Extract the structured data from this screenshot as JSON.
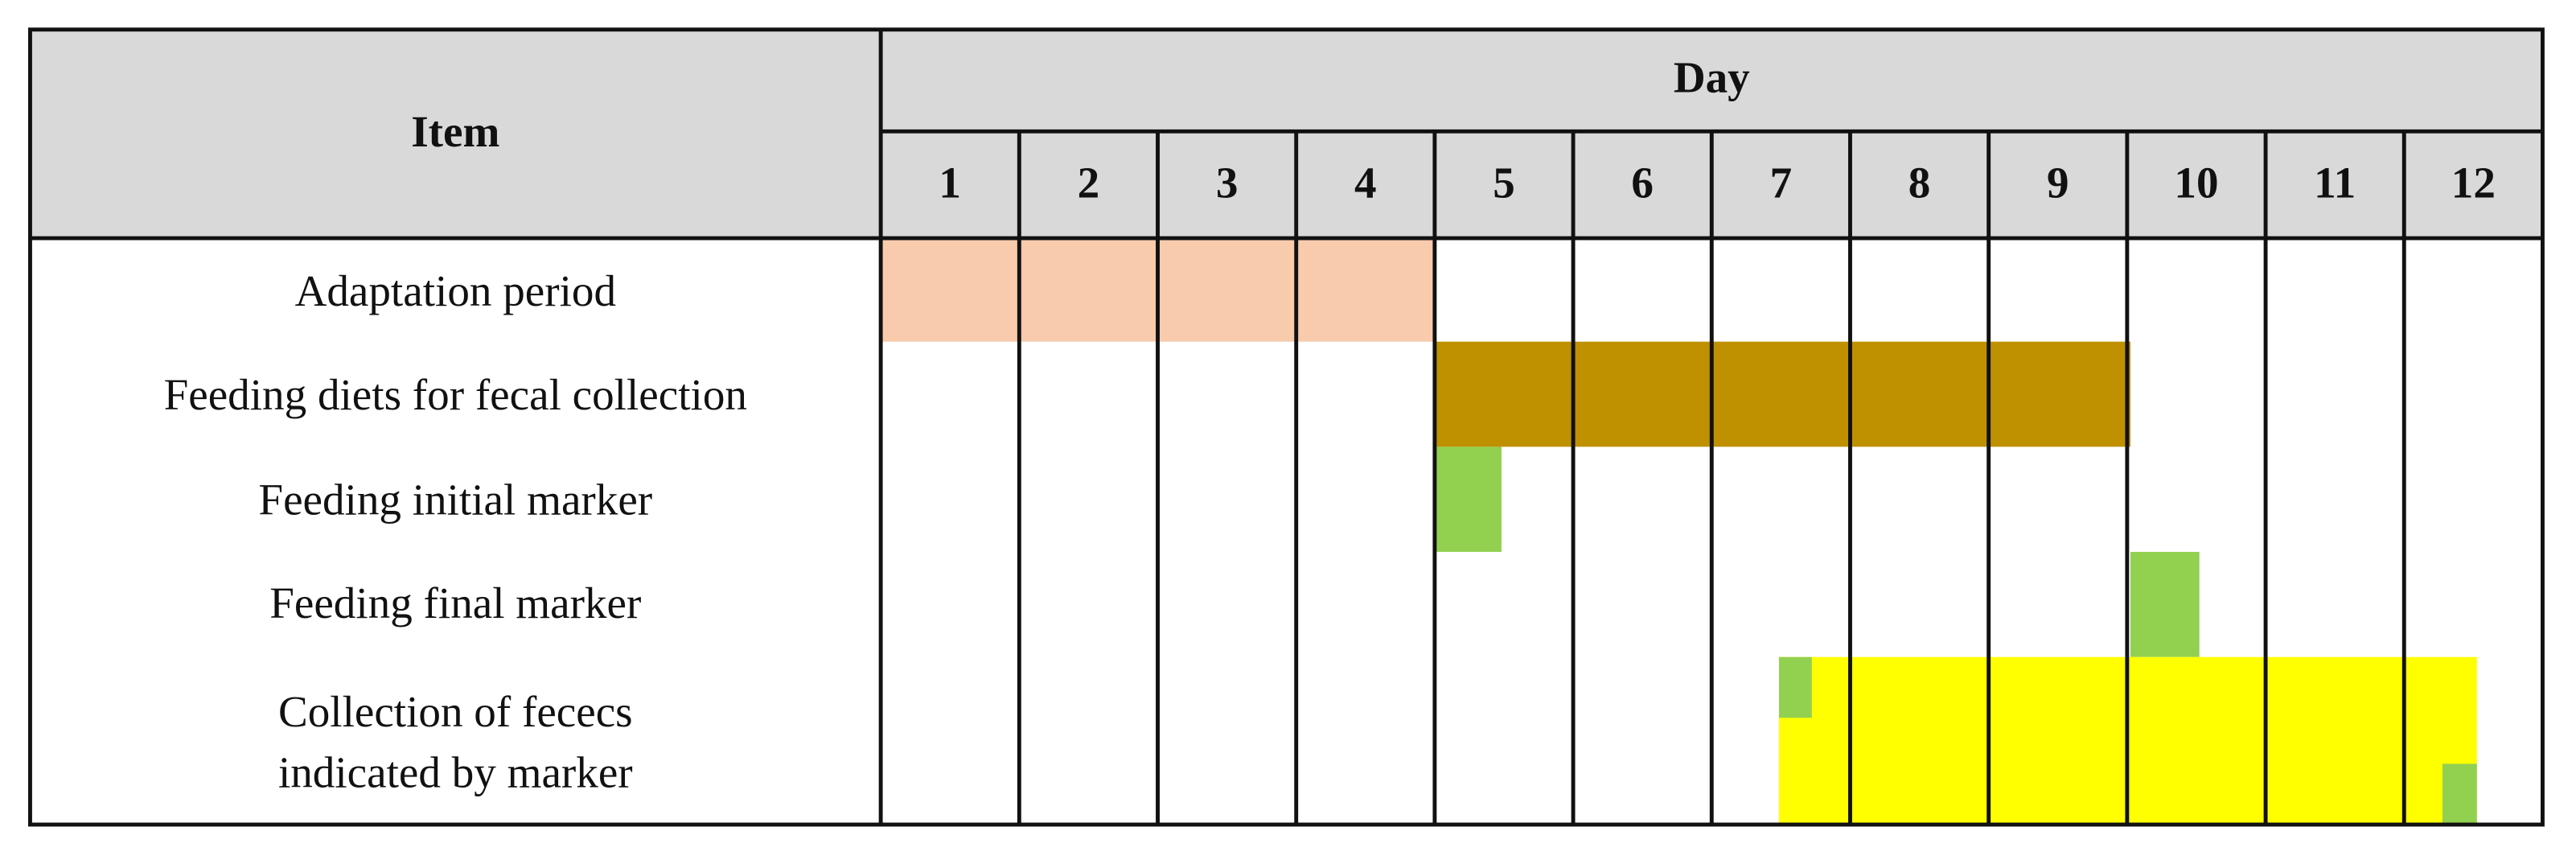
{
  "header": {
    "item": "Item",
    "day": "Day",
    "days": [
      "1",
      "2",
      "3",
      "4",
      "5",
      "6",
      "7",
      "8",
      "9",
      "10",
      "11",
      "12"
    ]
  },
  "rows": [
    [
      "Adaptation period"
    ],
    [
      "Feeding diets for fecal collection"
    ],
    [
      "Feeding initial marker"
    ],
    [
      "Feeding final marker"
    ],
    [
      "Collection of fececs",
      "indicated by marker"
    ]
  ]
}
